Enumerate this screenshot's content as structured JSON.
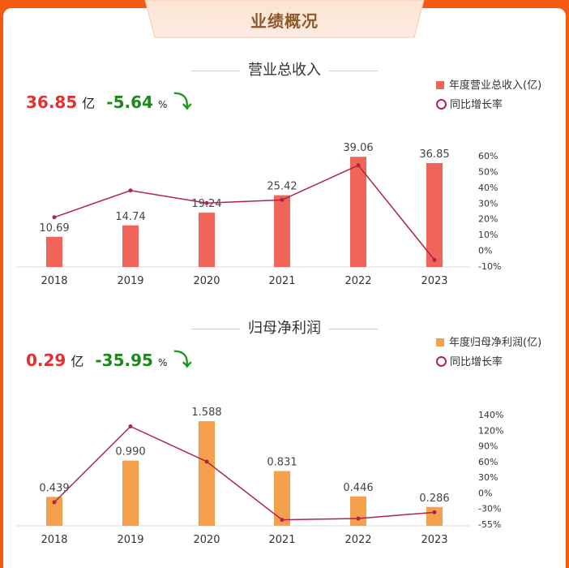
{
  "header": {
    "title": "业绩概况"
  },
  "revenue": {
    "section_title": "营业总收入",
    "kpi_value": "36.85",
    "kpi_unit": "亿",
    "kpi_change": "-5.64",
    "kpi_change_unit": "%",
    "legend_bar": "年度营业总收入(亿)",
    "legend_line": "同比增长率",
    "colors": {
      "bar": "#f0645a",
      "line": "#b0244a"
    }
  },
  "profit": {
    "section_title": "归母净利润",
    "kpi_value": "0.29",
    "kpi_unit": "亿",
    "kpi_change": "-35.95",
    "kpi_change_unit": "%",
    "legend_bar": "年度归母净利润(亿)",
    "legend_line": "同比增长率",
    "colors": {
      "bar": "#f5a04c",
      "line": "#b0244a"
    }
  },
  "chart_data": [
    {
      "type": "bar",
      "categories": [
        "2018",
        "2019",
        "2020",
        "2021",
        "2022",
        "2023"
      ],
      "series": [
        {
          "name": "年度营业总收入(亿)",
          "values": [
            10.69,
            14.74,
            19.24,
            25.42,
            39.06,
            36.85
          ],
          "labels": [
            "10.69",
            "14.74",
            "19.24",
            "25.42",
            "39.06",
            "36.85"
          ]
        },
        {
          "name": "同比增长率",
          "type": "line",
          "axis": "right",
          "values": [
            21,
            38,
            30,
            32,
            54,
            -6
          ]
        }
      ],
      "y2_ticks": [
        "60%",
        "50%",
        "40%",
        "30%",
        "20%",
        "10%",
        "0%",
        "-10%"
      ],
      "y2_values": [
        60,
        50,
        40,
        30,
        20,
        10,
        0,
        -10
      ],
      "y2lim": [
        -10,
        60
      ],
      "ylim": [
        0,
        42
      ],
      "legend": "top-right",
      "grid": false
    },
    {
      "type": "bar",
      "categories": [
        "2018",
        "2019",
        "2020",
        "2021",
        "2022",
        "2023"
      ],
      "series": [
        {
          "name": "年度归母净利润(亿)",
          "values": [
            0.439,
            0.99,
            1.588,
            0.831,
            0.446,
            0.286
          ],
          "labels": [
            "0.439",
            "0.990",
            "1.588",
            "0.831",
            "0.446",
            "0.286"
          ]
        },
        {
          "name": "同比增长率",
          "type": "line",
          "axis": "right",
          "values": [
            -18,
            125,
            60,
            -48,
            -46,
            -36
          ]
        }
      ],
      "y2_ticks": [
        "140%",
        "120%",
        "90%",
        "60%",
        "30%",
        "0%",
        "-30%",
        "-55%"
      ],
      "y2_values": [
        140,
        120,
        90,
        60,
        30,
        0,
        -30,
        -55
      ],
      "y2lim": [
        -55,
        140
      ],
      "ylim": [
        0,
        1.7
      ],
      "legend": "top-right",
      "grid": false
    }
  ]
}
